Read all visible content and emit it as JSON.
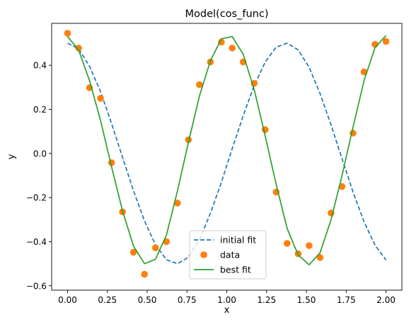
{
  "chart_data": {
    "type": "line",
    "title": "Model(cos_func)",
    "xlabel": "x",
    "ylabel": "y",
    "xlim": [
      -0.1,
      2.1
    ],
    "ylim": [
      -0.62,
      0.59
    ],
    "xticks": [
      0.0,
      0.25,
      0.5,
      0.75,
      1.0,
      1.25,
      1.5,
      1.75,
      2.0
    ],
    "xtick_labels": [
      "0.00",
      "0.25",
      "0.50",
      "0.75",
      "1.00",
      "1.25",
      "1.50",
      "1.75",
      "2.00"
    ],
    "yticks": [
      -0.6,
      -0.4,
      -0.2,
      0.0,
      0.2,
      0.4
    ],
    "ytick_labels": [
      "−0.6",
      "−0.4",
      "−0.2",
      "0.0",
      "0.2",
      "0.4"
    ],
    "grid": false,
    "legend": {
      "placement": "bottom-center"
    },
    "x": [
      0.0,
      0.069,
      0.138,
      0.207,
      0.276,
      0.345,
      0.414,
      0.483,
      0.552,
      0.621,
      0.69,
      0.759,
      0.828,
      0.897,
      0.966,
      1.034,
      1.103,
      1.172,
      1.241,
      1.31,
      1.379,
      1.448,
      1.517,
      1.586,
      1.655,
      1.724,
      1.793,
      1.862,
      1.931,
      2.0
    ],
    "series": [
      {
        "name": "initial fit",
        "style": "dashed-line",
        "color": "#1f77b4",
        "values": [
          0.5,
          0.475,
          0.395,
          0.281,
          0.136,
          -0.017,
          -0.169,
          -0.306,
          -0.414,
          -0.482,
          -0.5,
          -0.471,
          -0.391,
          -0.272,
          -0.131,
          0.022,
          0.171,
          0.308,
          0.414,
          0.482,
          0.5,
          0.47,
          0.391,
          0.271,
          0.129,
          -0.024,
          -0.175,
          -0.31,
          -0.416,
          -0.483
        ]
      },
      {
        "name": "data",
        "style": "markers",
        "color": "#ff7f0e",
        "values": [
          0.545,
          0.478,
          0.298,
          0.25,
          -0.042,
          -0.265,
          -0.448,
          -0.548,
          -0.428,
          -0.4,
          -0.225,
          0.062,
          0.312,
          0.415,
          0.505,
          0.478,
          0.415,
          0.318,
          0.108,
          -0.175,
          -0.408,
          -0.455,
          -0.418,
          -0.472,
          -0.27,
          -0.15,
          0.092,
          0.37,
          0.495,
          0.508
        ]
      },
      {
        "name": "best fit",
        "style": "solid-line",
        "color": "#2ca02c",
        "values": [
          0.53,
          0.47,
          0.33,
          0.15,
          -0.06,
          -0.26,
          -0.42,
          -0.5,
          -0.48,
          -0.37,
          -0.17,
          0.05,
          0.26,
          0.42,
          0.52,
          0.53,
          0.45,
          0.29,
          0.08,
          -0.14,
          -0.34,
          -0.46,
          -0.505,
          -0.45,
          -0.3,
          -0.1,
          0.12,
          0.33,
          0.48,
          0.535
        ]
      }
    ]
  }
}
